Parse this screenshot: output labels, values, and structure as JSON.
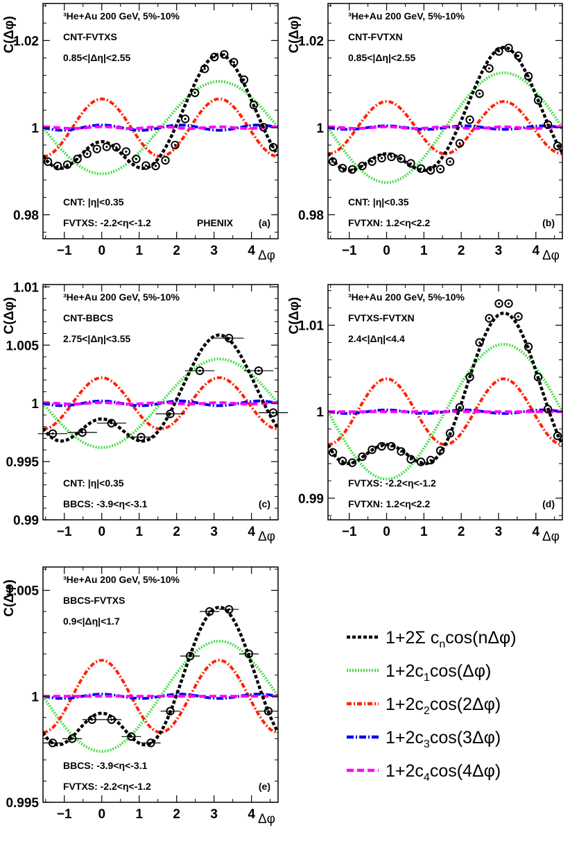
{
  "chart_data": [
    {
      "type": "line",
      "panel_id": "a",
      "title_lines": [
        "³He+Au 200 GeV, 5%-10%",
        "CNT-FVTXS",
        "0.85<|Δη|<2.55"
      ],
      "bottom_lines": [
        "CNT: |η|<0.35",
        "FVTXS: -2.2<η<-1.2"
      ],
      "extra_label": "PHENIX",
      "panel_label": "(a)",
      "xlabel": "Δφ",
      "ylabel": "C(Δφ)",
      "xlim": [
        -1.57,
        4.71
      ],
      "ylim": [
        0.9745,
        1.0285
      ],
      "xticks": [
        "−1",
        "0",
        "1",
        "2",
        "3",
        "4"
      ],
      "yticks": [
        "0.98",
        "1",
        "1.02"
      ],
      "c": [
        0,
        -0.0053,
        0.0033,
        0.0003,
        0.0001
      ],
      "points": {
        "x": [
          -1.44,
          -1.18,
          -0.92,
          -0.65,
          -0.39,
          -0.13,
          0.13,
          0.39,
          0.65,
          0.92,
          1.18,
          1.44,
          1.7,
          1.96,
          2.23,
          2.49,
          2.75,
          3.01,
          3.27,
          3.53,
          3.8,
          4.06,
          4.32,
          4.58
        ],
        "y": [
          0.9922,
          0.9912,
          0.9915,
          0.9928,
          0.994,
          0.9951,
          0.9956,
          0.9955,
          0.9945,
          0.9928,
          0.9913,
          0.9912,
          0.9925,
          0.996,
          1.002,
          1.008,
          1.0135,
          1.0162,
          1.0168,
          1.015,
          1.011,
          1.0052,
          1.0001,
          0.9955
        ]
      }
    },
    {
      "type": "line",
      "panel_id": "b",
      "title_lines": [
        "³He+Au 200 GeV, 5%-10%",
        "CNT-FVTXN",
        "0.85<|Δη|<2.55"
      ],
      "bottom_lines": [
        "CNT: |η|<0.35",
        "FVTXN: 1.2<η<2.2"
      ],
      "extra_label": "",
      "panel_label": "(b)",
      "xlabel": "Δφ",
      "ylabel": "C(Δφ)",
      "xlim": [
        -1.57,
        4.71
      ],
      "ylim": [
        0.9745,
        1.0285
      ],
      "xticks": [
        "−1",
        "0",
        "1",
        "2",
        "3",
        "4"
      ],
      "yticks": [
        "0.98",
        "1",
        "1.02"
      ],
      "c": [
        0,
        -0.0063,
        0.003,
        0.0002,
        0.0001
      ],
      "points": {
        "x": [
          -1.44,
          -1.18,
          -0.92,
          -0.65,
          -0.39,
          -0.13,
          0.13,
          0.39,
          0.65,
          0.92,
          1.18,
          1.44,
          1.7,
          1.96,
          2.23,
          2.49,
          2.75,
          3.01,
          3.27,
          3.53,
          3.8,
          4.06,
          4.32,
          4.58
        ],
        "y": [
          0.9922,
          0.9907,
          0.9904,
          0.9912,
          0.9922,
          0.993,
          0.9933,
          0.9929,
          0.9918,
          0.9906,
          0.9902,
          0.9905,
          0.9922,
          0.9964,
          1.0018,
          1.0078,
          1.0136,
          1.0175,
          1.0183,
          1.0165,
          1.0118,
          1.0063,
          1.0007,
          0.9958
        ]
      }
    },
    {
      "type": "line",
      "panel_id": "c",
      "title_lines": [
        "³He+Au 200 GeV, 5%-10%",
        "CNT-BBCS",
        "2.75<|Δη|<3.55"
      ],
      "bottom_lines": [
        "CNT: |η|<0.35",
        "BBCS: -3.9<η<-3.1"
      ],
      "extra_label": "",
      "panel_label": "(c)",
      "xlabel": "Δφ",
      "ylabel": "C(Δφ)",
      "xlim": [
        -1.57,
        4.71
      ],
      "ylim": [
        0.99,
        1.0102
      ],
      "xticks": [
        "−1",
        "0",
        "1",
        "2",
        "3",
        "4"
      ],
      "yticks": [
        "0.99",
        "0.995",
        "1",
        "1.005",
        "1.01"
      ],
      "c": [
        0,
        -0.0019,
        0.0011,
        0.0001,
        3e-05
      ],
      "points": {
        "x": [
          -1.31,
          -0.52,
          0.26,
          1.05,
          1.83,
          2.62,
          3.4,
          4.19,
          4.58
        ],
        "y": [
          0.9974,
          0.9975,
          0.9983,
          0.9971,
          0.9991,
          1.0028,
          1.0056,
          1.0028,
          0.9992
        ]
      }
    },
    {
      "type": "line",
      "panel_id": "d",
      "title_lines": [
        "³He+Au 200 GeV, 5%-10%",
        "FVTXS-FVTXN",
        "2.4<|Δη|<4.4"
      ],
      "bottom_lines": [
        "FVTXS: -2.2<η<-1.2",
        "FVTXN: 1.2<η<2.2"
      ],
      "extra_label": "",
      "panel_label": "(d)",
      "xlabel": "Δφ",
      "ylabel": "C(Δφ)",
      "xlim": [
        -1.57,
        4.71
      ],
      "ylim": [
        0.9875,
        1.0147
      ],
      "xticks": [
        "−1",
        "0",
        "1",
        "2",
        "3",
        "4"
      ],
      "yticks": [
        "0.99",
        "1",
        "1.01"
      ],
      "c": [
        0,
        -0.0039,
        0.0019,
        0.0001,
        0
      ],
      "points": {
        "x": [
          -1.44,
          -1.18,
          -0.92,
          -0.65,
          -0.39,
          -0.13,
          0.13,
          0.39,
          0.65,
          0.92,
          1.18,
          1.44,
          1.7,
          1.96,
          2.23,
          2.49,
          2.75,
          3.01,
          3.27,
          3.53,
          3.8,
          4.06,
          4.32,
          4.58
        ],
        "y": [
          0.9953,
          0.9943,
          0.9941,
          0.9948,
          0.9956,
          0.996,
          0.996,
          0.9954,
          0.9945,
          0.9942,
          0.9944,
          0.9955,
          0.9975,
          1.0005,
          1.004,
          1.008,
          1.0108,
          1.0125,
          1.0125,
          1.011,
          1.0075,
          1.004,
          1.0003,
          0.9972
        ]
      }
    },
    {
      "type": "line",
      "panel_id": "e",
      "title_lines": [
        "³He+Au 200 GeV, 5%-10%",
        "BBCS-FVTXS",
        "0.9<|Δη|<1.7"
      ],
      "bottom_lines": [
        "BBCS: -3.9<η<-3.1",
        "FVTXS: -2.2<η<-1.2"
      ],
      "extra_label": "",
      "panel_label": "(e)",
      "xlabel": "Δφ",
      "ylabel": "C(Δφ)",
      "xlim": [
        -1.57,
        4.71
      ],
      "ylim": [
        0.995,
        1.0061
      ],
      "xticks": [
        "−1",
        "0",
        "1",
        "2",
        "3",
        "4"
      ],
      "yticks": [
        "0.995",
        "1",
        "1.005"
      ],
      "c": [
        0,
        -0.0013,
        0.00085,
        5e-05,
        0
      ],
      "points": {
        "x": [
          -1.31,
          -0.79,
          -0.26,
          0.26,
          0.79,
          1.31,
          1.83,
          2.36,
          2.88,
          3.4,
          3.93,
          4.45
        ],
        "y": [
          0.9978,
          0.998,
          0.9989,
          0.9989,
          0.9981,
          0.9978,
          0.9993,
          1.0019,
          1.004,
          1.0041,
          1.002,
          0.9993
        ]
      }
    }
  ],
  "legend": {
    "entries": [
      {
        "id": "sum",
        "color": "#000000",
        "dash": "5,3",
        "text": "1+2Σ c",
        "sub": "n",
        "rest": "cos(nΔφ)"
      },
      {
        "id": "c1",
        "color": "#44dd44",
        "dash": "2,2",
        "text": "1+2c",
        "sub": "1",
        "rest": "cos(Δφ)"
      },
      {
        "id": "c2",
        "color": "#ff2200",
        "dash": "7,3,2,3",
        "text": "1+2c",
        "sub": "2",
        "rest": "cos(2Δφ)"
      },
      {
        "id": "c3",
        "color": "#0000ee",
        "dash": "10,3,2,3",
        "text": "1+2c",
        "sub": "3",
        "rest": "cos(3Δφ)"
      },
      {
        "id": "c4",
        "color": "#ff00ff",
        "dash": "10,5",
        "text": "1+2c",
        "sub": "4",
        "rest": "cos(4Δφ)"
      }
    ]
  }
}
